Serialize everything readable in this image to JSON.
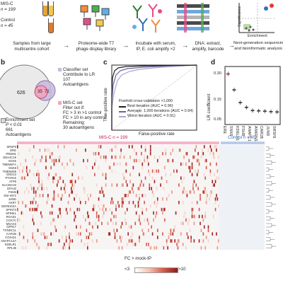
{
  "panel_a": {
    "cohort_line1": "MIS-C",
    "cohort_line2": "n = 199",
    "control_line1": "Control",
    "control_line2": "n = 45",
    "steps": [
      {
        "line1": "Samples from large",
        "line2": "multicentre cohort"
      },
      {
        "line1": "Proteome-wide T7",
        "line2": "phage display library"
      },
      {
        "line1": "Incubate with serum,",
        "line2": "IP, E. coli amplify ×2"
      },
      {
        "line1": "DNA: extract,",
        "line2": "amplify, barcode"
      },
      {
        "line1": "Next-generation sequencing",
        "line2": "and bioinformatic analysis"
      }
    ],
    "axis_significance": "Significance",
    "axis_enrichment": "Enrichment"
  },
  "panel_b": {
    "letter": "b",
    "left_count": "626",
    "overlap_count": "35",
    "right_count": "72",
    "classifier_label": "Classifier set",
    "classifier_lines": [
      "Contribute to LR",
      "107",
      "Autoantigens"
    ],
    "misc_label": "MIS-C set",
    "misc_lines": [
      "Filter out if:",
      "FC > 3 in >1 control",
      "FC > 10 in any control",
      "Remaining:",
      "30 autoantigens"
    ],
    "enrichment_label": "Enrichment set",
    "enrichment_lines": [
      "P < 0.01",
      "661",
      "Autoantigens"
    ]
  },
  "panel_c": {
    "letter": "c",
    "ylabel": "True-positive rate",
    "xlabel": "False-positive rate",
    "legend_title": "Fivefold cross-validation ×1,000",
    "legend": [
      "Best iteration (AUC = 0.96)",
      "Average: 1,000 iterations (AUC = 0.94)",
      "Worst iteration (AUC = 0.91)"
    ],
    "colors": {
      "best": "#222222",
      "average": "#6b5fa8",
      "worst": "#a7a7c7"
    }
  },
  "chart_data": {
    "type": "scatter",
    "title": "",
    "xlabel": "",
    "ylabel": "LR coefficient",
    "ylim": [
      0,
      0.32
    ],
    "yticks": [
      "0.30",
      "0.15",
      "0.05"
    ],
    "categories": [
      "ERE",
      "SNX8",
      "KDELR1",
      "FSHR",
      "ANAPC15",
      "ANKRN1",
      "CAR1B",
      "JUND",
      "SRSF6"
    ],
    "values": [
      0.3,
      0.2,
      0.12,
      0.09,
      0.07,
      0.068,
      0.066,
      0.063,
      0.061
    ]
  },
  "panel_d": {
    "letter": "d"
  },
  "panel_e": {
    "misc_header": "MIS-C n = 199",
    "control_header": "Control n = 45",
    "genes": [
      "SRSF6",
      "ERE",
      "PRDM1",
      "DNAJC19",
      "SOX5",
      "TMEM87A",
      "SNX8",
      "TMEM269",
      "GNG13",
      "PTAR15",
      "ATP8",
      "SLC25A43",
      "GPA33",
      "FSHB",
      "INS-IGF2",
      "JUND",
      "AKR7",
      "DEFB104A",
      "SPINT3",
      "SPINK1",
      "RGAD1",
      "CCK7C",
      "MSAX3",
      "GPR17",
      "TXNDC11",
      "CAR1B",
      "COX411",
      "ANAPC12A",
      "KDELR1",
      "RPL35"
    ],
    "legend_label": "FC > mock-IP",
    "legend_low": "<3",
    "legend_high": ">10"
  }
}
